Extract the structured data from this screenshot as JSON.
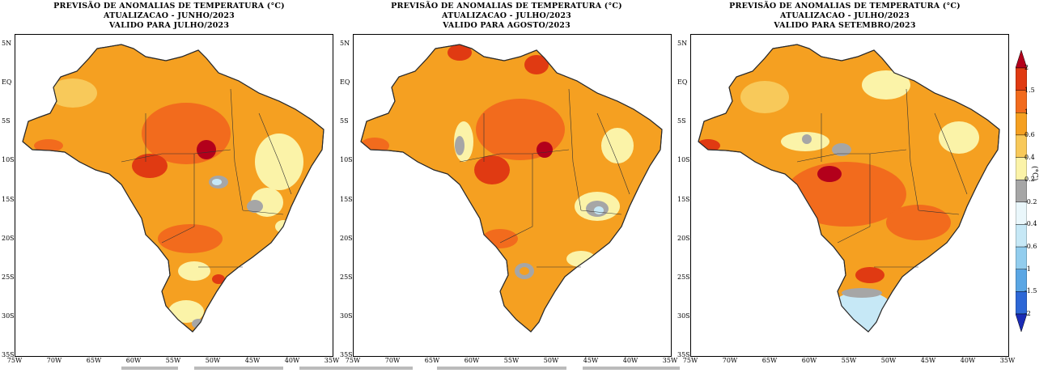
{
  "panels": [
    {
      "title1": "PREVISÃO DE ANOMALIAS DE TEMPERATURA (°C)",
      "title2": "ATUALIZACAO - JUNHO/2023",
      "title3": "VALIDO PARA JULHO/2023"
    },
    {
      "title1": "PREVISÃO DE ANOMALIAS DE TEMPERATURA (°C)",
      "title2": "ATUALIZACAO - JULHO/2023",
      "title3": "VALIDO PARA AGOSTO/2023"
    },
    {
      "title1": "PREVISÃO DE ANOMALIAS DE TEMPERATURA (°C)",
      "title2": "ATUALIZACAO - JULHO/2023",
      "title3": "VALIDO PARA SETEMBRO/2023"
    }
  ],
  "lat_labels": [
    "5N",
    "EQ",
    "5S",
    "10S",
    "15S",
    "20S",
    "25S",
    "30S",
    "35S"
  ],
  "lon_labels": [
    "75W",
    "70W",
    "65W",
    "60W",
    "55W",
    "50W",
    "45W",
    "40W",
    "35W"
  ],
  "colorbar": {
    "unit": "(°C)",
    "ticks": [
      "2",
      "1.5",
      "1",
      "0.6",
      "0.4",
      "0.2",
      "-0.2",
      "-0.4",
      "-0.6",
      "-1",
      "-1.5",
      "-2"
    ],
    "colors": [
      "#b3001b",
      "#e03a12",
      "#f26b1d",
      "#f5a021",
      "#f8c95a",
      "#fbf3a8",
      "#a6a6a6",
      "#eaf7fb",
      "#c6e8f6",
      "#92cdee",
      "#5aa6e4",
      "#2d67d6",
      "#1a2bb5"
    ]
  },
  "colors": {
    "land_base": "#f5a021",
    "outline": "#2b2b2b"
  }
}
